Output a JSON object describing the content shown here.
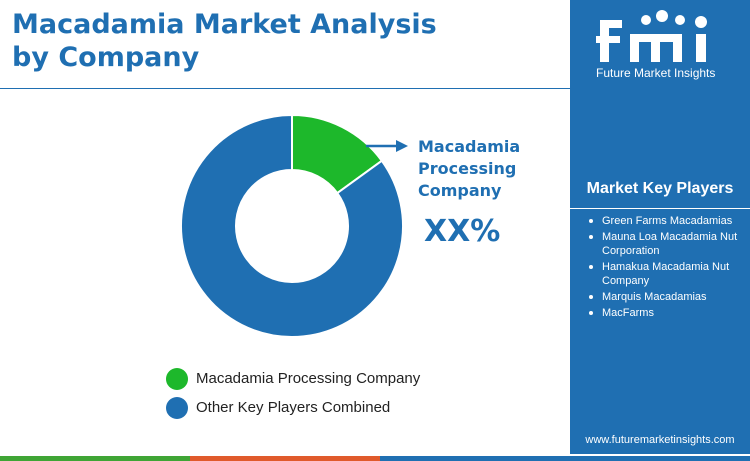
{
  "title": "Macadamia Market Analysis by Company",
  "brand": {
    "logo_text": "fmi",
    "name": "Future Market Insights",
    "url": "www.futuremarketinsights.com"
  },
  "callout": {
    "label": "Macadamia Processing Company",
    "value": "XX%"
  },
  "key_players": {
    "title": "Market Key Players",
    "items": [
      "Green Farms Macadamias",
      "Mauna Loa Macadamia Nut Corporation",
      "Hamakua Macadamia Nut Company",
      "Marquis Macadamias",
      "MacFarms"
    ]
  },
  "colors": {
    "brand_blue": "#1f6fb2",
    "green": "#1db82b",
    "footer": [
      "#3fa535",
      "#e05a2b",
      "#1f6fb2"
    ]
  },
  "chart_data": {
    "type": "pie",
    "donut": true,
    "categories": [
      "Macadamia Processing Company",
      "Other Key Players Combined"
    ],
    "values": [
      15,
      85
    ],
    "colors": [
      "#1db82b",
      "#1f6fb2"
    ],
    "legend_position": "bottom"
  }
}
